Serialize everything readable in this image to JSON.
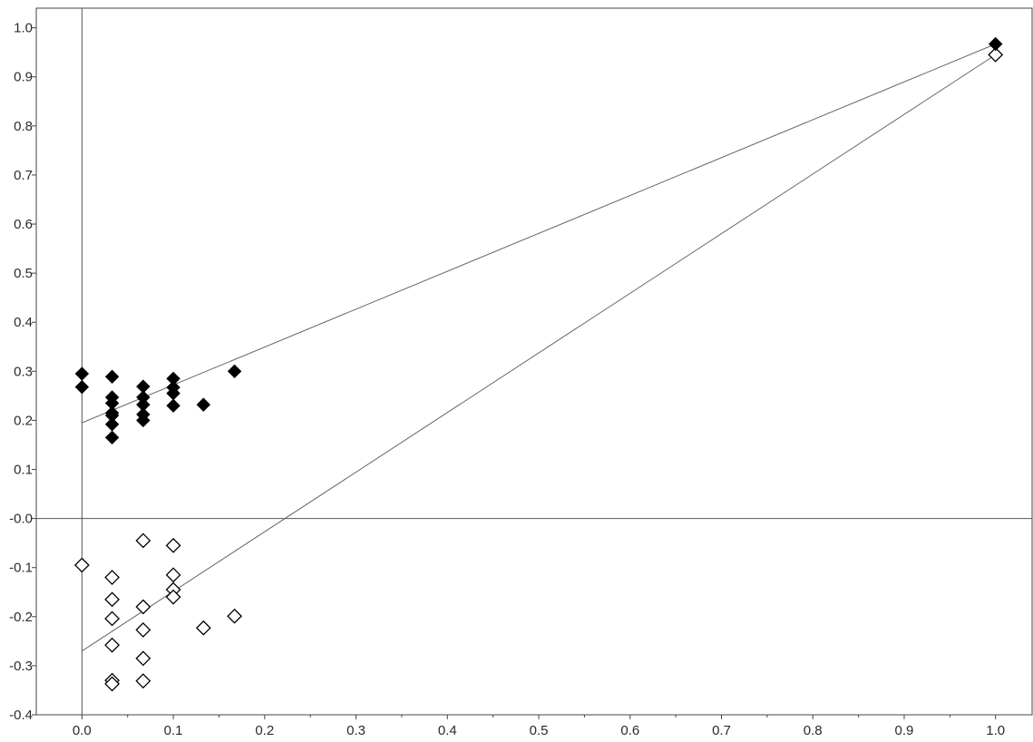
{
  "chart_data": {
    "type": "scatter",
    "xlim": [
      -0.05,
      1.04
    ],
    "ylim": [
      -0.4,
      1.04
    ],
    "x_ticks": [
      "0.0",
      "0.1",
      "0.2",
      "0.3",
      "0.4",
      "0.5",
      "0.6",
      "0.7",
      "0.8",
      "0.9",
      "1.0"
    ],
    "y_ticks": [
      "-0.4",
      "-0.3",
      "-0.2",
      "-0.1",
      "-0.0",
      "0.1",
      "0.2",
      "0.3",
      "0.4",
      "0.5",
      "0.6",
      "0.7",
      "0.8",
      "0.9",
      "1.0"
    ],
    "grid": false,
    "legend": "none",
    "reference_lines": [
      {
        "type": "vertical",
        "x": 0.0
      },
      {
        "type": "horizontal",
        "y": 0.0
      }
    ],
    "series": [
      {
        "marker": "diamond-filled",
        "color": "#000000",
        "points": [
          [
            0.0,
            0.295
          ],
          [
            0.0,
            0.268
          ],
          [
            0.033,
            0.289
          ],
          [
            0.033,
            0.247
          ],
          [
            0.033,
            0.235
          ],
          [
            0.033,
            0.215
          ],
          [
            0.033,
            0.21
          ],
          [
            0.033,
            0.192
          ],
          [
            0.033,
            0.165
          ],
          [
            0.067,
            0.269
          ],
          [
            0.067,
            0.247
          ],
          [
            0.067,
            0.232
          ],
          [
            0.067,
            0.212
          ],
          [
            0.067,
            0.2
          ],
          [
            0.1,
            0.285
          ],
          [
            0.1,
            0.267
          ],
          [
            0.1,
            0.255
          ],
          [
            0.1,
            0.23
          ],
          [
            0.133,
            0.232
          ],
          [
            0.167,
            0.3
          ],
          [
            1.0,
            0.967
          ]
        ],
        "fit_line": {
          "x": [
            0.0,
            1.0
          ],
          "y": [
            0.195,
            0.967
          ]
        }
      },
      {
        "marker": "diamond-open",
        "color": "#000000",
        "points": [
          [
            0.0,
            -0.095
          ],
          [
            0.033,
            -0.12
          ],
          [
            0.033,
            -0.165
          ],
          [
            0.033,
            -0.204
          ],
          [
            0.033,
            -0.258
          ],
          [
            0.033,
            -0.33
          ],
          [
            0.033,
            -0.337
          ],
          [
            0.067,
            -0.045
          ],
          [
            0.067,
            -0.18
          ],
          [
            0.067,
            -0.227
          ],
          [
            0.067,
            -0.285
          ],
          [
            0.067,
            -0.331
          ],
          [
            0.1,
            -0.055
          ],
          [
            0.1,
            -0.115
          ],
          [
            0.1,
            -0.145
          ],
          [
            0.1,
            -0.16
          ],
          [
            0.133,
            -0.223
          ],
          [
            0.167,
            -0.199
          ],
          [
            1.0,
            0.945
          ]
        ],
        "fit_line": {
          "x": [
            0.0,
            1.0
          ],
          "y": [
            -0.27,
            0.945
          ]
        }
      }
    ]
  }
}
